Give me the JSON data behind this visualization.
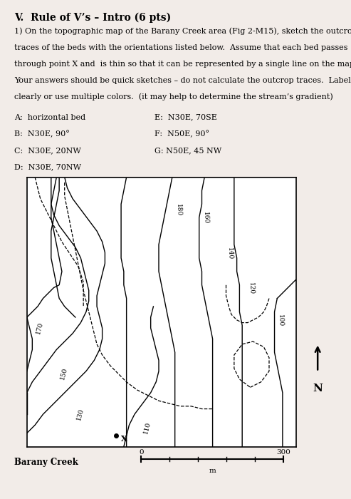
{
  "title": "V.  Rule of V’s – Intro (6 pts)",
  "para1": "1) On the topographic map of the Barany Creek area (Fig 2-M15), sketch the outcrop",
  "para2": "traces of the beds with the orientations listed below.  Assume that each bed passes",
  "para3": "through point X and  is thin so that it can be represented by a single line on the map.",
  "para4": "Your answers should be quick sketches – do not calculate the outcrop traces.  Label beds",
  "para5": "clearly or use multiple colors.  (it may help to determine the stream’s gradient)",
  "labels_left": [
    "A:  horizontal bed",
    "B:  N30E, 90°",
    "C:  N30E, 20NW",
    "D:  N30E, 70NW"
  ],
  "labels_right": [
    "E:  N30E, 70SE",
    "F:  N50E, 90°",
    "G: N50E, 45 NW"
  ],
  "scale_label": "Barany Creek",
  "scale_0": "0",
  "scale_300": "300",
  "scale_unit": "m",
  "north_label": "N",
  "bg_color": "#f2ece8",
  "map_bg": "#ffffff",
  "cc": "#000000"
}
